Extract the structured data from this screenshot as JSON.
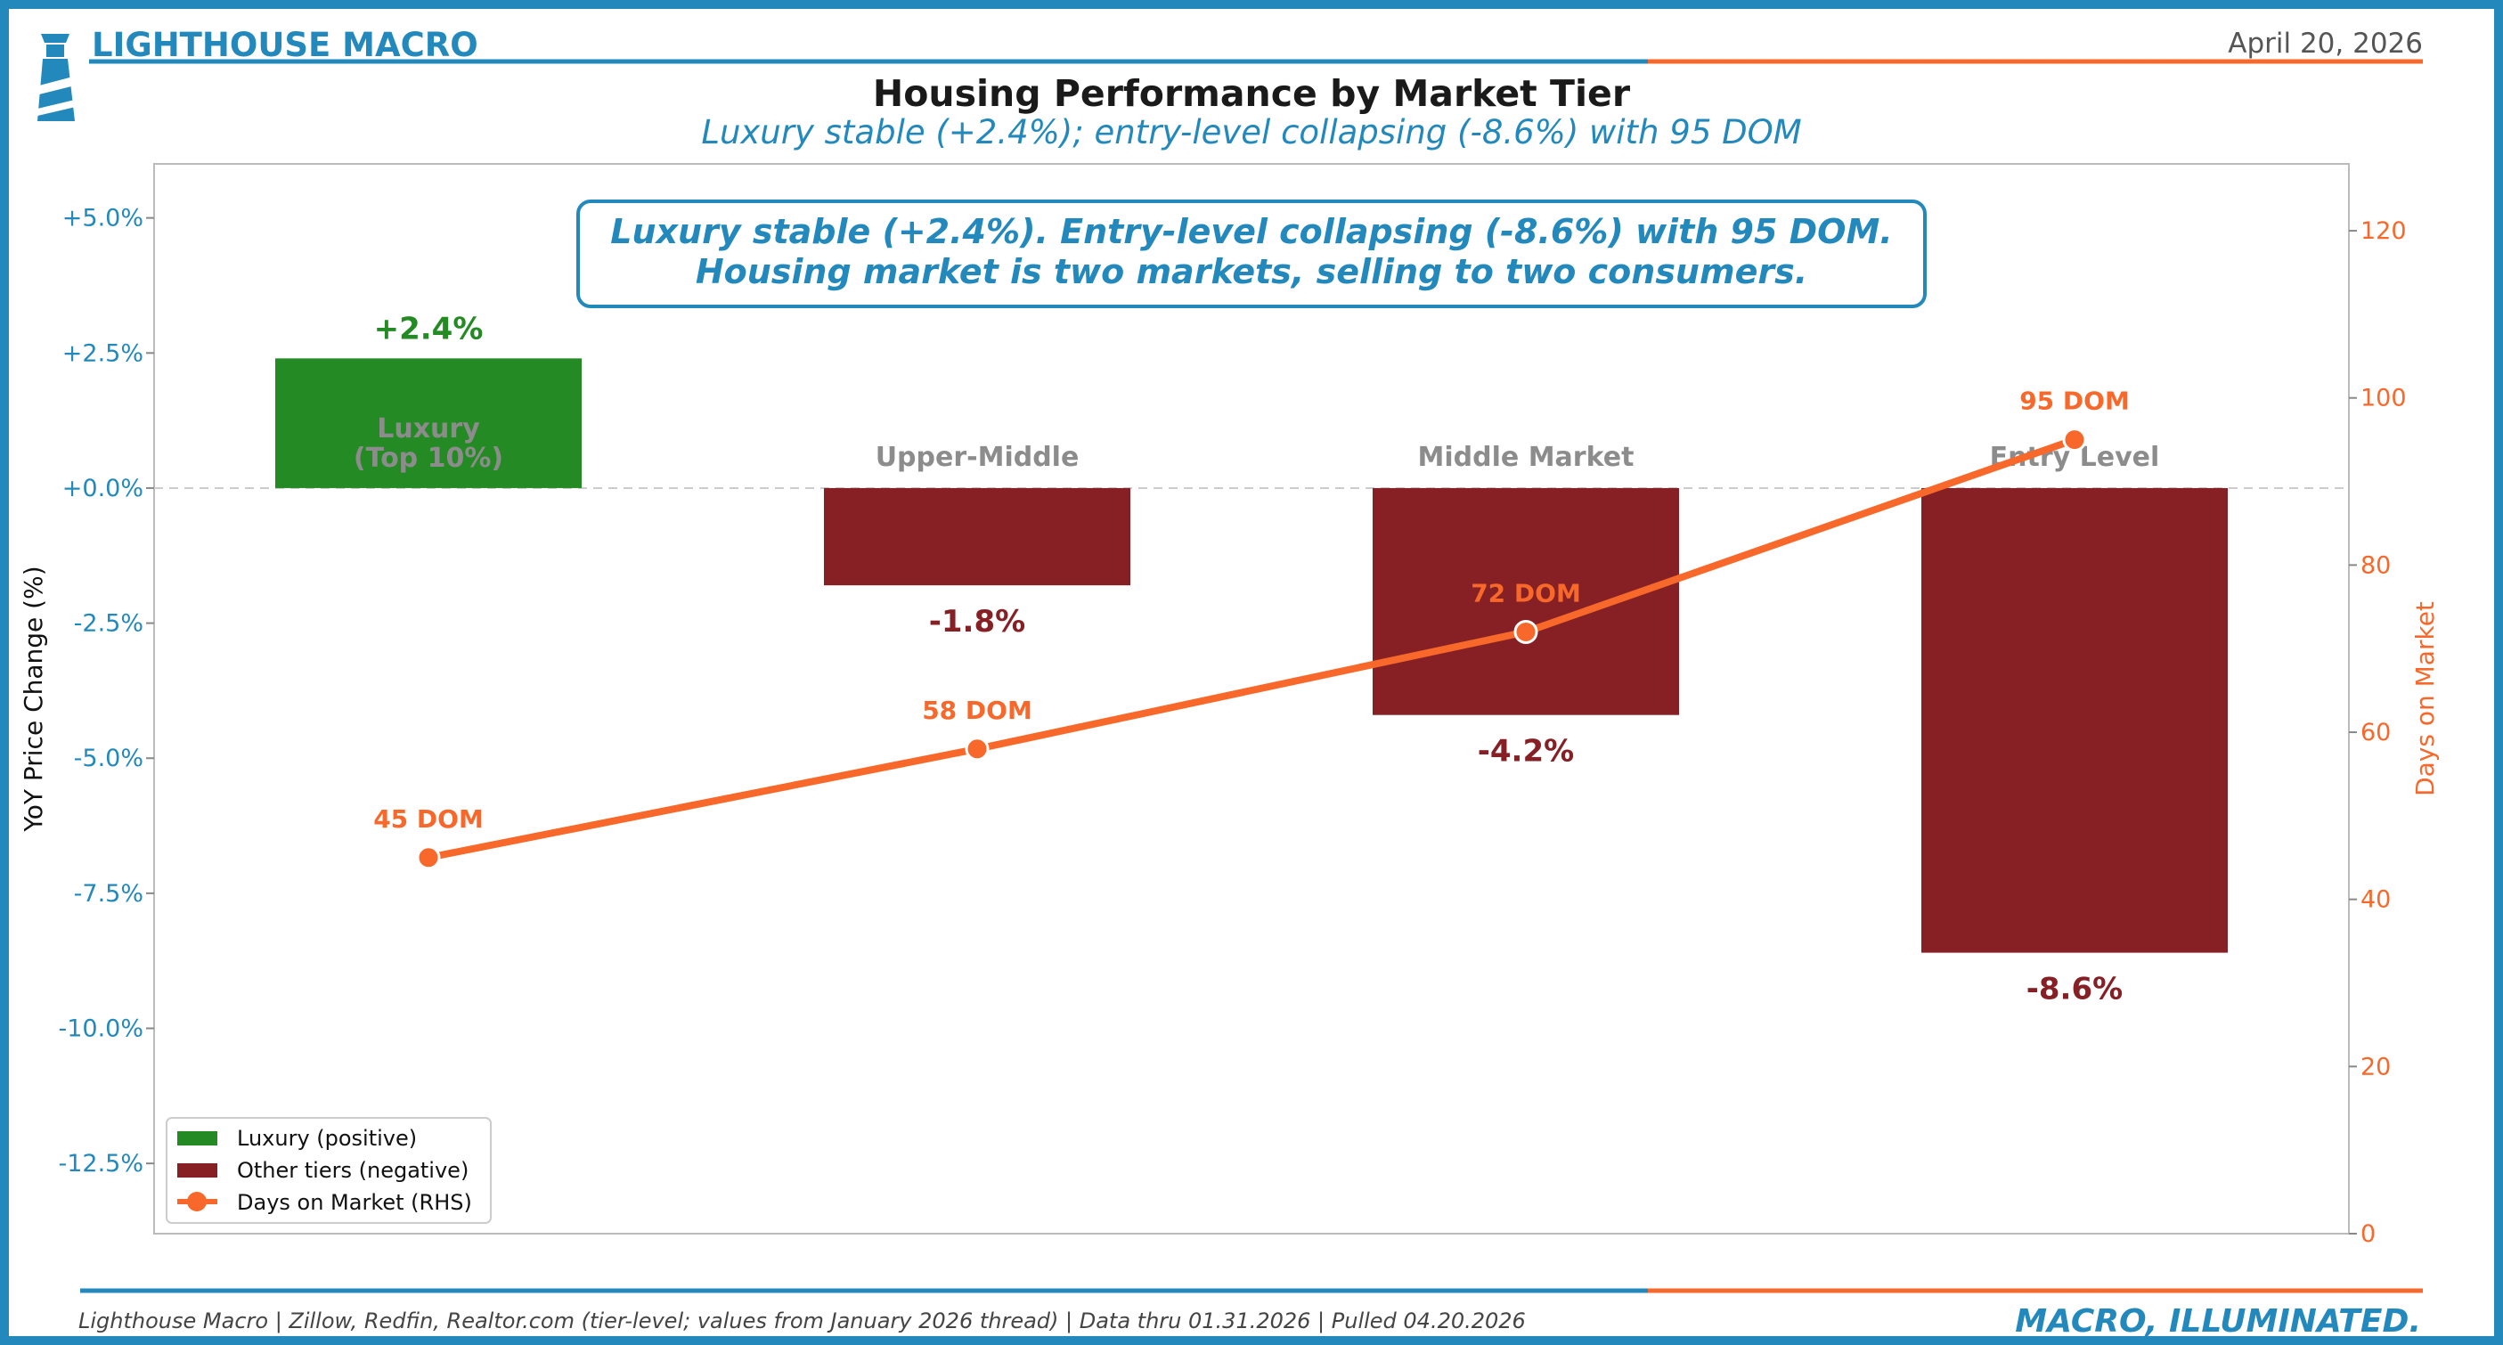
{
  "brand": {
    "name": "LIGHTHOUSE MACRO",
    "tagline": "MACRO, ILLUMINATED."
  },
  "date": "April 20, 2026",
  "title": "Housing Performance by Market Tier",
  "subtitle": "Luxury stable (+2.4%); entry-level collapsing (-8.6%) with 95 DOM",
  "annotation": {
    "line1": "Luxury stable (+2.4%). Entry-level collapsing (-8.6%) with 95 DOM.",
    "line2": "Housing market is two markets, selling to two consumers."
  },
  "footer": {
    "source": "Lighthouse Macro | Zillow, Redfin, Realtor.com (tier-level; values from January 2026 thread) | Data thru 01.31.2026 | Pulled 04.20.2026"
  },
  "colors": {
    "brand_blue": "#2389bd",
    "accent_orange": "#f7682a",
    "positive_green": "#248b24",
    "negative_red": "#862024",
    "tier_label_gray": "#8c8c8c"
  },
  "chart_data": {
    "type": "bar",
    "categories": [
      "Luxury\n(Top 10%)",
      "Upper-Middle",
      "Middle Market",
      "Entry Level"
    ],
    "series": [
      {
        "name": "YoY Price Change (%)",
        "axis": "left",
        "values": [
          2.4,
          -1.8,
          -4.2,
          -8.6
        ],
        "value_labels": [
          "+2.4%",
          "-1.8%",
          "-4.2%",
          "-8.6%"
        ]
      },
      {
        "name": "Days on Market (RHS)",
        "axis": "right",
        "type": "line",
        "values": [
          45,
          58,
          72,
          95
        ],
        "value_labels": [
          "45 DOM",
          "58 DOM",
          "72 DOM",
          "95 DOM"
        ]
      }
    ],
    "ylabel": "YoY Price Change (%)",
    "y2label": "Days on Market",
    "ylim": [
      -13.8,
      6.0
    ],
    "y2lim": [
      0,
      128
    ],
    "yticks": [
      5.0,
      2.5,
      0.0,
      -2.5,
      -5.0,
      -7.5,
      -10.0,
      -12.5
    ],
    "ytick_labels": [
      "+5.0%",
      "+2.5%",
      "+0.0%",
      "-2.5%",
      "-5.0%",
      "-7.5%",
      "-10.0%",
      "-12.5%"
    ],
    "y2ticks": [
      0,
      20,
      40,
      60,
      80,
      100,
      120
    ],
    "y2tick_labels": [
      "0",
      "20",
      "40",
      "60",
      "80",
      "100",
      "120"
    ],
    "zero_line": "dashed",
    "grid": false,
    "legend": {
      "placement": "lower-left",
      "entries": [
        "Luxury (positive)",
        "Other tiers (negative)",
        "Days on Market (RHS)"
      ]
    }
  }
}
